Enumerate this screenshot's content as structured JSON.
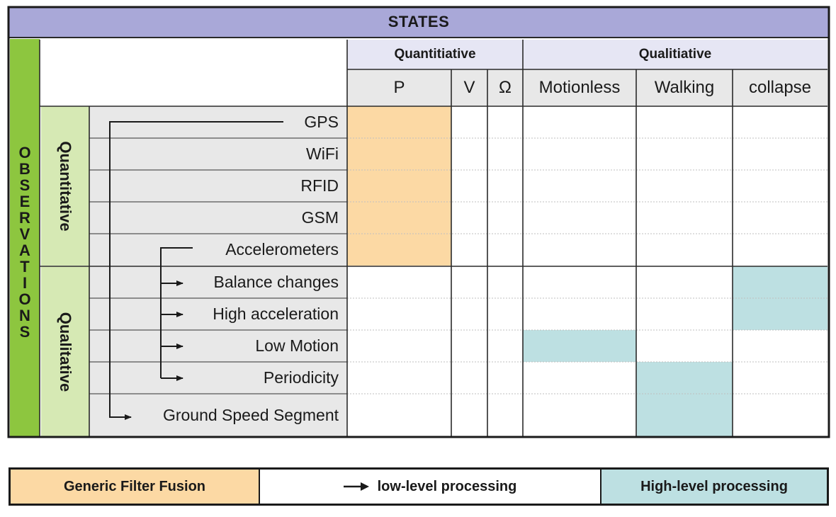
{
  "header": {
    "title": "STATES"
  },
  "state_groups": [
    {
      "label": "Quantitiative"
    },
    {
      "label": "Qualitiative"
    }
  ],
  "state_columns": [
    {
      "label": "P"
    },
    {
      "label": "V"
    },
    {
      "label": "Ω"
    },
    {
      "label": "Motionless"
    },
    {
      "label": "Walking"
    },
    {
      "label": "collapse"
    }
  ],
  "observations": {
    "title": "OBSERVATIONS",
    "groups": [
      {
        "label": "Quantitative"
      },
      {
        "label": "Qualitative"
      }
    ],
    "rows": [
      {
        "label": "GPS"
      },
      {
        "label": "WiFi"
      },
      {
        "label": "RFID"
      },
      {
        "label": "GSM"
      },
      {
        "label": "Accelerometers"
      },
      {
        "label": "Balance changes"
      },
      {
        "label": "High acceleration"
      },
      {
        "label": "Low Motion"
      },
      {
        "label": "Periodicity"
      },
      {
        "label": "Ground Speed Segment"
      }
    ]
  },
  "legend": {
    "generic": "Generic Filter Fusion",
    "low": "low-level processing",
    "high": "High-level processing"
  },
  "colors": {
    "states_bar": "#a9a8d8",
    "group_header": "#e6e6f4",
    "column_header": "#e8e8e8",
    "observations_bar": "#8dc63f",
    "observation_group": "#d6e9b4",
    "generic_filter_fusion": "#fcd9a4",
    "high_level_processing": "#bde0e2"
  }
}
